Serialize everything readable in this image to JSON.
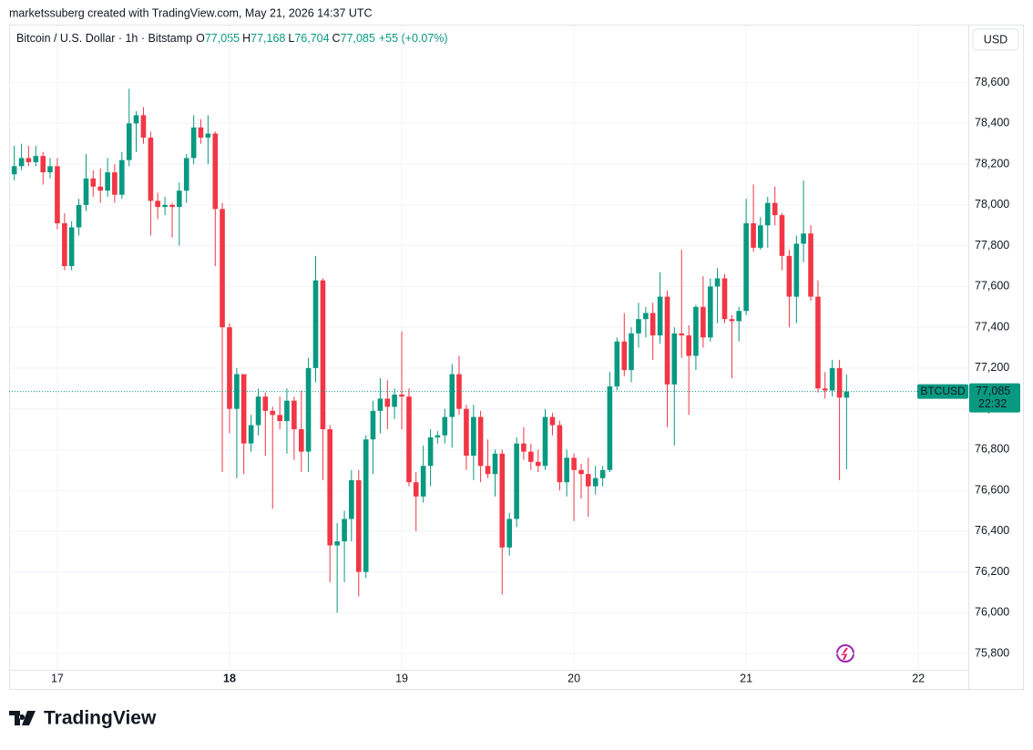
{
  "attribution": "marketssuberg created with TradingView.com, May 21, 2026 14:37 UTC",
  "logo": "TradingView",
  "chart_data": {
    "type": "candlestick",
    "title": "Bitcoin / U.S. Dollar · 1h · Bitstamp",
    "ohlc_header": [
      {
        "label": "O",
        "value": "77,055"
      },
      {
        "label": "H",
        "value": "77,168"
      },
      {
        "label": "L",
        "value": "76,704"
      },
      {
        "label": "C",
        "value": "77,085"
      }
    ],
    "change": "+55 (+0.07%)",
    "currency": "USD",
    "last_price_label": "77,085",
    "countdown": "22:32",
    "up_color": "#089981",
    "down_color": "#f23645",
    "grid": true,
    "xlim": [
      16.72,
      22.29
    ],
    "xticks": [
      17,
      18,
      19,
      20,
      21,
      22
    ],
    "ylim": [
      75720,
      78880
    ],
    "yticks": [
      {
        "value": 75800,
        "label": "75,800"
      },
      {
        "value": 76000,
        "label": "76,000"
      },
      {
        "value": 76200,
        "label": "76,200"
      },
      {
        "value": 76400,
        "label": "76,400"
      },
      {
        "value": 76600,
        "label": "76,600"
      },
      {
        "value": 76800,
        "label": "76,800"
      },
      {
        "value": 77000,
        "label": "77,000"
      },
      {
        "value": 77200,
        "label": "77,200"
      },
      {
        "value": 77400,
        "label": "77,400"
      },
      {
        "value": 77600,
        "label": "77,600"
      },
      {
        "value": 77800,
        "label": "77,800"
      },
      {
        "value": 78000,
        "label": "78,000"
      },
      {
        "value": 78200,
        "label": "78,200"
      },
      {
        "value": 78400,
        "label": "78,400"
      },
      {
        "value": 78600,
        "label": "78,600"
      }
    ],
    "x": [
      16.75,
      16.792,
      16.833,
      16.875,
      16.917,
      16.958,
      17,
      17.042,
      17.083,
      17.125,
      17.167,
      17.208,
      17.25,
      17.292,
      17.333,
      17.375,
      17.417,
      17.458,
      17.5,
      17.542,
      17.583,
      17.625,
      17.667,
      17.708,
      17.75,
      17.792,
      17.833,
      17.875,
      17.917,
      17.958,
      18,
      18.042,
      18.083,
      18.125,
      18.167,
      18.208,
      18.25,
      18.292,
      18.333,
      18.375,
      18.417,
      18.458,
      18.5,
      18.542,
      18.583,
      18.625,
      18.667,
      18.708,
      18.75,
      18.792,
      18.833,
      18.875,
      18.917,
      18.958,
      19,
      19.042,
      19.083,
      19.125,
      19.167,
      19.208,
      19.25,
      19.292,
      19.333,
      19.375,
      19.417,
      19.458,
      19.5,
      19.542,
      19.583,
      19.625,
      19.667,
      19.708,
      19.75,
      19.792,
      19.833,
      19.875,
      19.917,
      19.958,
      20,
      20.042,
      20.083,
      20.125,
      20.167,
      20.208,
      20.25,
      20.292,
      20.333,
      20.375,
      20.417,
      20.458,
      20.5,
      20.542,
      20.583,
      20.625,
      20.667,
      20.708,
      20.75,
      20.792,
      20.833,
      20.875,
      20.917,
      20.958,
      21,
      21.042,
      21.083,
      21.125,
      21.167,
      21.208,
      21.25,
      21.292,
      21.333,
      21.375,
      21.417,
      21.458,
      21.5,
      21.542,
      21.583
    ],
    "series": [
      {
        "name": "BTCUSD",
        "open": [
          78150,
          78190,
          78230,
          78210,
          78240,
          78160,
          78190,
          77910,
          77700,
          77890,
          78000,
          78130,
          78090,
          78070,
          78160,
          78050,
          78220,
          78400,
          78440,
          78330,
          78020,
          77990,
          78000,
          77990,
          78070,
          78230,
          78380,
          78330,
          78350,
          77980,
          77400,
          77000,
          77170,
          76830,
          76920,
          77060,
          76990,
          76970,
          76940,
          77040,
          76900,
          76790,
          77200,
          77630,
          76900,
          76330,
          76350,
          76460,
          76650,
          76200,
          76850,
          76990,
          77050,
          77010,
          77070,
          77060,
          76640,
          76570,
          76720,
          76860,
          76870,
          76960,
          77170,
          77000,
          76770,
          76960,
          76720,
          76680,
          76780,
          76320,
          76460,
          76830,
          76790,
          76740,
          76720,
          76960,
          76920,
          76640,
          76760,
          76700,
          76680,
          76620,
          76660,
          76700,
          77110,
          77330,
          77190,
          77370,
          77440,
          77470,
          77360,
          77550,
          77120,
          77370,
          77360,
          77260,
          77500,
          77350,
          77600,
          77640,
          77440,
          77430,
          77480,
          77910,
          77790,
          77900,
          78010,
          77950,
          77750,
          77550,
          77810,
          77860,
          77550,
          77100,
          77090,
          77200,
          77055
        ],
        "high": [
          78290,
          78300,
          78290,
          78290,
          78260,
          78230,
          78230,
          77960,
          77920,
          78030,
          78250,
          78170,
          78180,
          78230,
          78200,
          78260,
          78570,
          78460,
          78480,
          78360,
          78060,
          78040,
          78010,
          78110,
          78250,
          78440,
          78420,
          78440,
          78360,
          78010,
          77420,
          77200,
          77170,
          76970,
          77100,
          77080,
          77010,
          77060,
          77100,
          77060,
          77090,
          77250,
          77750,
          77640,
          76920,
          76440,
          76500,
          76700,
          76700,
          76870,
          77040,
          77150,
          77140,
          77100,
          77380,
          77100,
          76690,
          76820,
          76900,
          76890,
          77000,
          77220,
          77260,
          77020,
          77020,
          76990,
          76850,
          76800,
          76800,
          76490,
          76860,
          76910,
          76830,
          76800,
          77000,
          76980,
          76940,
          76800,
          76780,
          76730,
          76760,
          76720,
          76720,
          77180,
          77350,
          77470,
          77400,
          77520,
          77500,
          77520,
          77670,
          77580,
          77400,
          77780,
          77410,
          77510,
          77650,
          77640,
          77690,
          77660,
          77460,
          77500,
          78030,
          78100,
          77940,
          78040,
          78090,
          77960,
          77780,
          77850,
          78120,
          77900,
          77630,
          77180,
          77240,
          77240,
          77168
        ],
        "low": [
          78120,
          78170,
          78190,
          78190,
          78100,
          78130,
          77880,
          77680,
          77680,
          77850,
          77970,
          78040,
          78010,
          78040,
          78010,
          78030,
          78190,
          78260,
          78300,
          77850,
          77930,
          77950,
          77840,
          77800,
          78010,
          78200,
          78300,
          78200,
          77700,
          76690,
          76880,
          76660,
          76680,
          76790,
          76870,
          76770,
          76510,
          76900,
          76780,
          76750,
          76690,
          76690,
          77130,
          76650,
          76150,
          76000,
          76150,
          76350,
          76080,
          76170,
          76680,
          76880,
          76900,
          76950,
          76900,
          76620,
          76400,
          76540,
          76620,
          76830,
          76830,
          76810,
          76970,
          76700,
          76650,
          76640,
          76660,
          76570,
          76090,
          76280,
          76420,
          76750,
          76700,
          76690,
          76700,
          76870,
          76600,
          76570,
          76450,
          76560,
          76470,
          76580,
          76620,
          76690,
          77090,
          77160,
          77130,
          77300,
          77350,
          77240,
          77320,
          76910,
          76820,
          77250,
          76970,
          77190,
          77300,
          77330,
          77420,
          77420,
          77150,
          77330,
          77460,
          77770,
          77780,
          77790,
          77900,
          77680,
          77400,
          77420,
          77720,
          77530,
          77080,
          77050,
          77060,
          76650,
          76704
        ],
        "close": [
          78190,
          78230,
          78210,
          78240,
          78160,
          78190,
          77910,
          77700,
          77890,
          78000,
          78130,
          78090,
          78070,
          78160,
          78050,
          78220,
          78400,
          78440,
          78330,
          78020,
          77990,
          78000,
          77990,
          78070,
          78230,
          78380,
          78330,
          78350,
          77980,
          77400,
          77000,
          77170,
          76830,
          76920,
          77060,
          76990,
          76970,
          76940,
          77040,
          76900,
          76790,
          77200,
          77630,
          76900,
          76330,
          76350,
          76460,
          76650,
          76200,
          76850,
          76990,
          77050,
          77010,
          77070,
          77060,
          76640,
          76570,
          76720,
          76860,
          76870,
          76960,
          77170,
          77000,
          76770,
          76960,
          76720,
          76680,
          76780,
          76320,
          76460,
          76830,
          76790,
          76740,
          76720,
          76960,
          76920,
          76640,
          76760,
          76700,
          76680,
          76620,
          76660,
          76700,
          77110,
          77330,
          77190,
          77370,
          77440,
          77470,
          77360,
          77550,
          77120,
          77370,
          77360,
          77260,
          77500,
          77350,
          77600,
          77640,
          77440,
          77430,
          77480,
          77910,
          77790,
          77900,
          78010,
          77950,
          77750,
          77550,
          77810,
          77860,
          77550,
          77100,
          77090,
          77200,
          77055,
          77085
        ]
      }
    ]
  }
}
